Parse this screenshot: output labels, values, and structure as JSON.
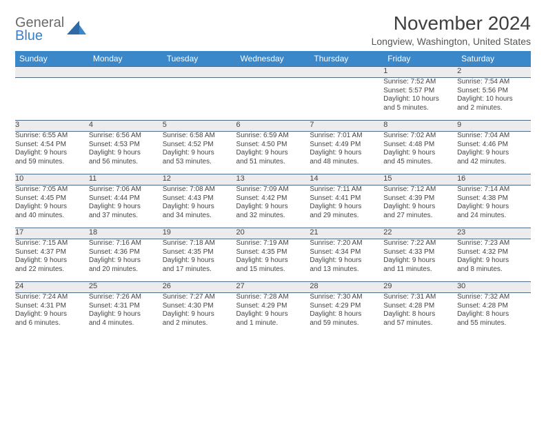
{
  "brand": {
    "part1": "General",
    "part2": "Blue"
  },
  "title": "November 2024",
  "location": "Longview, Washington, United States",
  "colors": {
    "header_bg": "#3a87c9",
    "header_text": "#ffffff",
    "daynum_bg": "#ececec",
    "border": "#4a6b8a",
    "text": "#444444",
    "brand_gray": "#6a6a6a",
    "brand_blue": "#3a7fc4"
  },
  "typography": {
    "title_fontsize": 28,
    "location_fontsize": 14,
    "header_fontsize": 12,
    "daynum_fontsize": 11,
    "cell_fontsize": 10
  },
  "day_headers": [
    "Sunday",
    "Monday",
    "Tuesday",
    "Wednesday",
    "Thursday",
    "Friday",
    "Saturday"
  ],
  "weeks": [
    [
      {
        "n": "",
        "sr": "",
        "ss": "",
        "d1": "",
        "d2": ""
      },
      {
        "n": "",
        "sr": "",
        "ss": "",
        "d1": "",
        "d2": ""
      },
      {
        "n": "",
        "sr": "",
        "ss": "",
        "d1": "",
        "d2": ""
      },
      {
        "n": "",
        "sr": "",
        "ss": "",
        "d1": "",
        "d2": ""
      },
      {
        "n": "",
        "sr": "",
        "ss": "",
        "d1": "",
        "d2": ""
      },
      {
        "n": "1",
        "sr": "Sunrise: 7:52 AM",
        "ss": "Sunset: 5:57 PM",
        "d1": "Daylight: 10 hours",
        "d2": "and 5 minutes."
      },
      {
        "n": "2",
        "sr": "Sunrise: 7:54 AM",
        "ss": "Sunset: 5:56 PM",
        "d1": "Daylight: 10 hours",
        "d2": "and 2 minutes."
      }
    ],
    [
      {
        "n": "3",
        "sr": "Sunrise: 6:55 AM",
        "ss": "Sunset: 4:54 PM",
        "d1": "Daylight: 9 hours",
        "d2": "and 59 minutes."
      },
      {
        "n": "4",
        "sr": "Sunrise: 6:56 AM",
        "ss": "Sunset: 4:53 PM",
        "d1": "Daylight: 9 hours",
        "d2": "and 56 minutes."
      },
      {
        "n": "5",
        "sr": "Sunrise: 6:58 AM",
        "ss": "Sunset: 4:52 PM",
        "d1": "Daylight: 9 hours",
        "d2": "and 53 minutes."
      },
      {
        "n": "6",
        "sr": "Sunrise: 6:59 AM",
        "ss": "Sunset: 4:50 PM",
        "d1": "Daylight: 9 hours",
        "d2": "and 51 minutes."
      },
      {
        "n": "7",
        "sr": "Sunrise: 7:01 AM",
        "ss": "Sunset: 4:49 PM",
        "d1": "Daylight: 9 hours",
        "d2": "and 48 minutes."
      },
      {
        "n": "8",
        "sr": "Sunrise: 7:02 AM",
        "ss": "Sunset: 4:48 PM",
        "d1": "Daylight: 9 hours",
        "d2": "and 45 minutes."
      },
      {
        "n": "9",
        "sr": "Sunrise: 7:04 AM",
        "ss": "Sunset: 4:46 PM",
        "d1": "Daylight: 9 hours",
        "d2": "and 42 minutes."
      }
    ],
    [
      {
        "n": "10",
        "sr": "Sunrise: 7:05 AM",
        "ss": "Sunset: 4:45 PM",
        "d1": "Daylight: 9 hours",
        "d2": "and 40 minutes."
      },
      {
        "n": "11",
        "sr": "Sunrise: 7:06 AM",
        "ss": "Sunset: 4:44 PM",
        "d1": "Daylight: 9 hours",
        "d2": "and 37 minutes."
      },
      {
        "n": "12",
        "sr": "Sunrise: 7:08 AM",
        "ss": "Sunset: 4:43 PM",
        "d1": "Daylight: 9 hours",
        "d2": "and 34 minutes."
      },
      {
        "n": "13",
        "sr": "Sunrise: 7:09 AM",
        "ss": "Sunset: 4:42 PM",
        "d1": "Daylight: 9 hours",
        "d2": "and 32 minutes."
      },
      {
        "n": "14",
        "sr": "Sunrise: 7:11 AM",
        "ss": "Sunset: 4:41 PM",
        "d1": "Daylight: 9 hours",
        "d2": "and 29 minutes."
      },
      {
        "n": "15",
        "sr": "Sunrise: 7:12 AM",
        "ss": "Sunset: 4:39 PM",
        "d1": "Daylight: 9 hours",
        "d2": "and 27 minutes."
      },
      {
        "n": "16",
        "sr": "Sunrise: 7:14 AM",
        "ss": "Sunset: 4:38 PM",
        "d1": "Daylight: 9 hours",
        "d2": "and 24 minutes."
      }
    ],
    [
      {
        "n": "17",
        "sr": "Sunrise: 7:15 AM",
        "ss": "Sunset: 4:37 PM",
        "d1": "Daylight: 9 hours",
        "d2": "and 22 minutes."
      },
      {
        "n": "18",
        "sr": "Sunrise: 7:16 AM",
        "ss": "Sunset: 4:36 PM",
        "d1": "Daylight: 9 hours",
        "d2": "and 20 minutes."
      },
      {
        "n": "19",
        "sr": "Sunrise: 7:18 AM",
        "ss": "Sunset: 4:35 PM",
        "d1": "Daylight: 9 hours",
        "d2": "and 17 minutes."
      },
      {
        "n": "20",
        "sr": "Sunrise: 7:19 AM",
        "ss": "Sunset: 4:35 PM",
        "d1": "Daylight: 9 hours",
        "d2": "and 15 minutes."
      },
      {
        "n": "21",
        "sr": "Sunrise: 7:20 AM",
        "ss": "Sunset: 4:34 PM",
        "d1": "Daylight: 9 hours",
        "d2": "and 13 minutes."
      },
      {
        "n": "22",
        "sr": "Sunrise: 7:22 AM",
        "ss": "Sunset: 4:33 PM",
        "d1": "Daylight: 9 hours",
        "d2": "and 11 minutes."
      },
      {
        "n": "23",
        "sr": "Sunrise: 7:23 AM",
        "ss": "Sunset: 4:32 PM",
        "d1": "Daylight: 9 hours",
        "d2": "and 8 minutes."
      }
    ],
    [
      {
        "n": "24",
        "sr": "Sunrise: 7:24 AM",
        "ss": "Sunset: 4:31 PM",
        "d1": "Daylight: 9 hours",
        "d2": "and 6 minutes."
      },
      {
        "n": "25",
        "sr": "Sunrise: 7:26 AM",
        "ss": "Sunset: 4:31 PM",
        "d1": "Daylight: 9 hours",
        "d2": "and 4 minutes."
      },
      {
        "n": "26",
        "sr": "Sunrise: 7:27 AM",
        "ss": "Sunset: 4:30 PM",
        "d1": "Daylight: 9 hours",
        "d2": "and 2 minutes."
      },
      {
        "n": "27",
        "sr": "Sunrise: 7:28 AM",
        "ss": "Sunset: 4:29 PM",
        "d1": "Daylight: 9 hours",
        "d2": "and 1 minute."
      },
      {
        "n": "28",
        "sr": "Sunrise: 7:30 AM",
        "ss": "Sunset: 4:29 PM",
        "d1": "Daylight: 8 hours",
        "d2": "and 59 minutes."
      },
      {
        "n": "29",
        "sr": "Sunrise: 7:31 AM",
        "ss": "Sunset: 4:28 PM",
        "d1": "Daylight: 8 hours",
        "d2": "and 57 minutes."
      },
      {
        "n": "30",
        "sr": "Sunrise: 7:32 AM",
        "ss": "Sunset: 4:28 PM",
        "d1": "Daylight: 8 hours",
        "d2": "and 55 minutes."
      }
    ]
  ]
}
